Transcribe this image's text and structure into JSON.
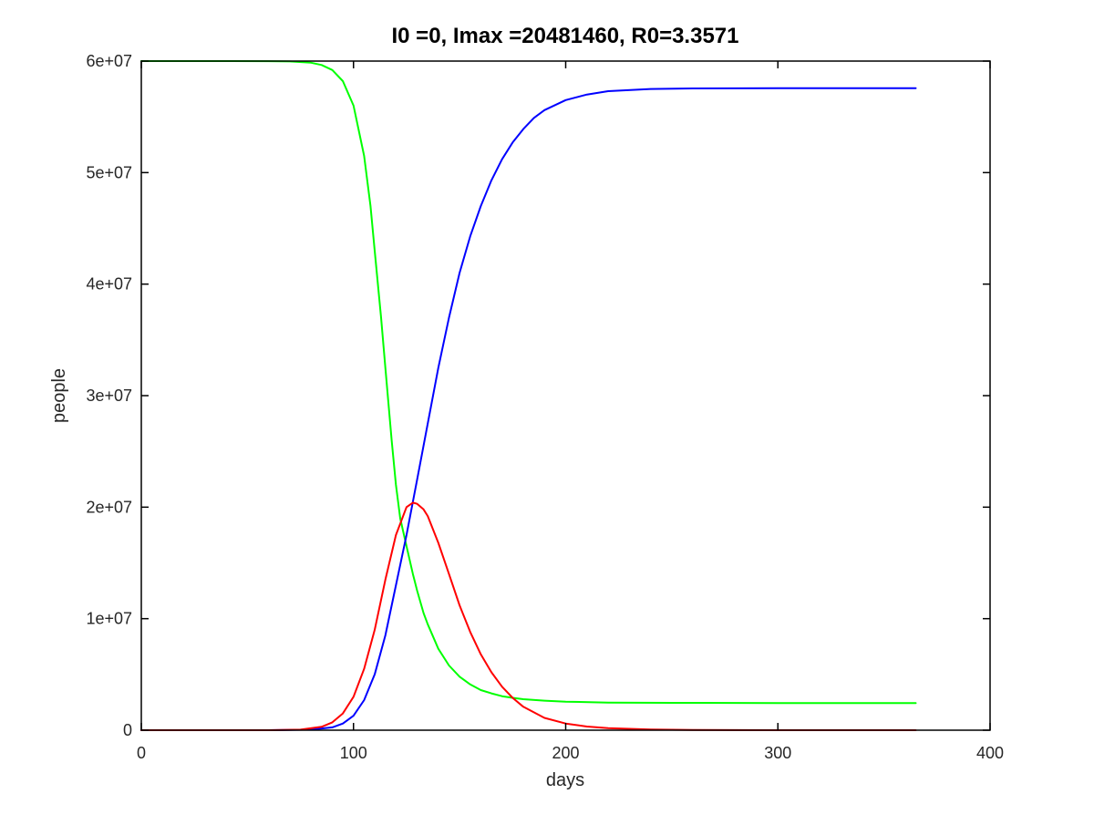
{
  "chart_data": {
    "type": "line",
    "title": "I0 =0, Imax =20481460, R0=3.3571",
    "xlabel": "days",
    "ylabel": "people",
    "xlim": [
      0,
      400
    ],
    "ylim": [
      0,
      60000000
    ],
    "x_ticks": [
      {
        "value": 0,
        "label": "0"
      },
      {
        "value": 100,
        "label": "100"
      },
      {
        "value": 200,
        "label": "200"
      },
      {
        "value": 300,
        "label": "300"
      },
      {
        "value": 400,
        "label": "400"
      }
    ],
    "y_ticks": [
      {
        "value": 0,
        "label": "0"
      },
      {
        "value": 10000000,
        "label": "1e+07"
      },
      {
        "value": 20000000,
        "label": "2e+07"
      },
      {
        "value": 30000000,
        "label": "3e+07"
      },
      {
        "value": 40000000,
        "label": "4e+07"
      },
      {
        "value": 50000000,
        "label": "5e+07"
      },
      {
        "value": 60000000,
        "label": "6e+07"
      }
    ],
    "grid": false,
    "legend": "none",
    "series": [
      {
        "color": "#00ff00",
        "points": [
          [
            0,
            60000000
          ],
          [
            20,
            60000000
          ],
          [
            40,
            60000000
          ],
          [
            60,
            59990000
          ],
          [
            70,
            59970000
          ],
          [
            80,
            59850000
          ],
          [
            85,
            59650000
          ],
          [
            90,
            59200000
          ],
          [
            95,
            58200000
          ],
          [
            100,
            56000000
          ],
          [
            105,
            51500000
          ],
          [
            108,
            47000000
          ],
          [
            110,
            43000000
          ],
          [
            113,
            37000000
          ],
          [
            115,
            32500000
          ],
          [
            118,
            26000000
          ],
          [
            120,
            22000000
          ],
          [
            122,
            19000000
          ],
          [
            125,
            16500000
          ],
          [
            128,
            14000000
          ],
          [
            130,
            12500000
          ],
          [
            133,
            10500000
          ],
          [
            135,
            9500000
          ],
          [
            140,
            7300000
          ],
          [
            145,
            5800000
          ],
          [
            150,
            4800000
          ],
          [
            155,
            4100000
          ],
          [
            160,
            3600000
          ],
          [
            165,
            3300000
          ],
          [
            170,
            3050000
          ],
          [
            175,
            2900000
          ],
          [
            180,
            2780000
          ],
          [
            190,
            2650000
          ],
          [
            200,
            2560000
          ],
          [
            220,
            2480000
          ],
          [
            250,
            2450000
          ],
          [
            300,
            2440000
          ],
          [
            365,
            2440000
          ]
        ]
      },
      {
        "color": "#0000ff",
        "points": [
          [
            0,
            0
          ],
          [
            60,
            0
          ],
          [
            80,
            50000
          ],
          [
            90,
            250000
          ],
          [
            95,
            600000
          ],
          [
            100,
            1300000
          ],
          [
            105,
            2700000
          ],
          [
            110,
            5000000
          ],
          [
            115,
            8500000
          ],
          [
            120,
            13000000
          ],
          [
            125,
            17500000
          ],
          [
            130,
            22500000
          ],
          [
            135,
            27500000
          ],
          [
            140,
            32500000
          ],
          [
            145,
            37000000
          ],
          [
            150,
            41000000
          ],
          [
            155,
            44300000
          ],
          [
            160,
            47000000
          ],
          [
            165,
            49300000
          ],
          [
            170,
            51200000
          ],
          [
            175,
            52700000
          ],
          [
            180,
            53900000
          ],
          [
            185,
            54900000
          ],
          [
            190,
            55600000
          ],
          [
            200,
            56500000
          ],
          [
            210,
            57000000
          ],
          [
            220,
            57300000
          ],
          [
            240,
            57500000
          ],
          [
            260,
            57550000
          ],
          [
            300,
            57560000
          ],
          [
            365,
            57560000
          ]
        ]
      },
      {
        "color": "#ff0000",
        "points": [
          [
            0,
            0
          ],
          [
            60,
            0
          ],
          [
            75,
            50000
          ],
          [
            85,
            300000
          ],
          [
            90,
            700000
          ],
          [
            95,
            1500000
          ],
          [
            100,
            3000000
          ],
          [
            105,
            5500000
          ],
          [
            110,
            9000000
          ],
          [
            115,
            13500000
          ],
          [
            120,
            17500000
          ],
          [
            125,
            20000000
          ],
          [
            128,
            20400000
          ],
          [
            130,
            20300000
          ],
          [
            133,
            19800000
          ],
          [
            135,
            19200000
          ],
          [
            140,
            16800000
          ],
          [
            145,
            14000000
          ],
          [
            150,
            11200000
          ],
          [
            155,
            8800000
          ],
          [
            160,
            6800000
          ],
          [
            165,
            5200000
          ],
          [
            170,
            3900000
          ],
          [
            175,
            2900000
          ],
          [
            180,
            2100000
          ],
          [
            190,
            1100000
          ],
          [
            200,
            600000
          ],
          [
            210,
            330000
          ],
          [
            220,
            180000
          ],
          [
            240,
            60000
          ],
          [
            260,
            20000
          ],
          [
            300,
            2000
          ],
          [
            365,
            0
          ]
        ]
      }
    ]
  }
}
